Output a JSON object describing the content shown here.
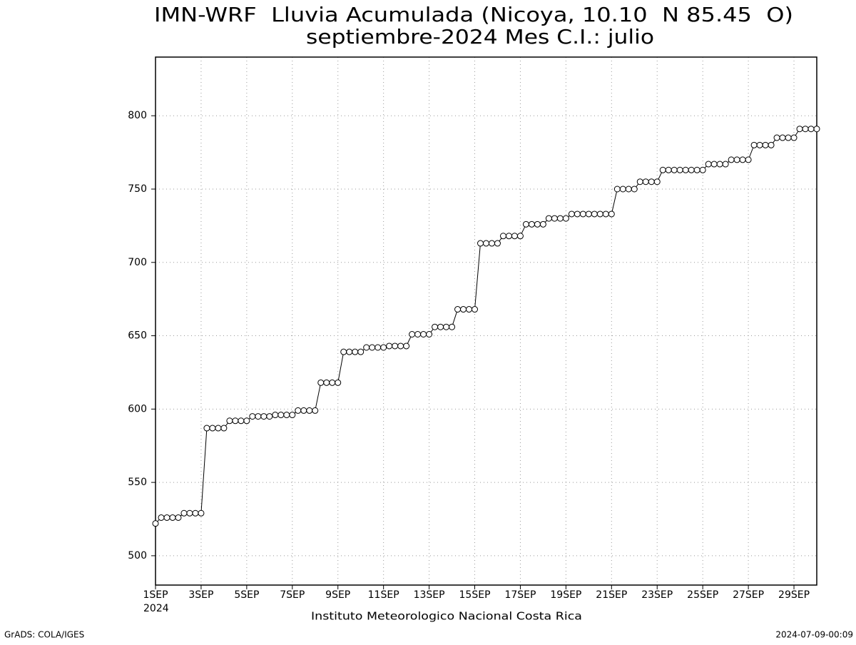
{
  "chart_data": {
    "type": "line",
    "title": "IMN-WRF  Lluvia Acumulada (Nicoya, 10.10  N 85.45  O)",
    "subtitle": "septiembre-2024 Mes C.I.: julio",
    "x_sublabel": "2024",
    "footer": "Instituto Meteorologico Nacional Costa Rica",
    "credit": "GrADS: COLA/IGES",
    "timestamp": "2024-07-09-00:09",
    "categories": [
      "1SEP",
      null,
      null,
      null,
      null,
      null,
      null,
      null,
      "3SEP",
      null,
      null,
      null,
      null,
      null,
      null,
      null,
      "5SEP",
      null,
      null,
      null,
      null,
      null,
      null,
      null,
      "7SEP",
      null,
      null,
      null,
      null,
      null,
      null,
      null,
      "9SEP",
      null,
      null,
      null,
      null,
      null,
      null,
      null,
      "11SEP",
      null,
      null,
      null,
      null,
      null,
      null,
      null,
      "13SEP",
      null,
      null,
      null,
      null,
      null,
      null,
      null,
      "15SEP",
      null,
      null,
      null,
      null,
      null,
      null,
      null,
      "17SEP",
      null,
      null,
      null,
      null,
      null,
      null,
      null,
      "19SEP",
      null,
      null,
      null,
      null,
      null,
      null,
      null,
      "21SEP",
      null,
      null,
      null,
      null,
      null,
      null,
      null,
      "23SEP",
      null,
      null,
      null,
      null,
      null,
      null,
      null,
      "25SEP",
      null,
      null,
      null,
      null,
      null,
      null,
      null,
      "27SEP",
      null,
      null,
      null,
      null,
      null,
      null,
      null,
      "29SEP",
      null,
      null,
      null,
      null
    ],
    "values": [
      522,
      526,
      526,
      526,
      526,
      529,
      529,
      529,
      529,
      587,
      587,
      587,
      587,
      592,
      592,
      592,
      592,
      595,
      595,
      595,
      595,
      596,
      596,
      596,
      596,
      599,
      599,
      599,
      599,
      618,
      618,
      618,
      618,
      639,
      639,
      639,
      639,
      642,
      642,
      642,
      642,
      643,
      643,
      643,
      643,
      651,
      651,
      651,
      651,
      656,
      656,
      656,
      656,
      668,
      668,
      668,
      668,
      713,
      713,
      713,
      713,
      718,
      718,
      718,
      718,
      726,
      726,
      726,
      726,
      730,
      730,
      730,
      730,
      733,
      733,
      733,
      733,
      733,
      733,
      733,
      733,
      750,
      750,
      750,
      750,
      755,
      755,
      755,
      755,
      763,
      763,
      763,
      763,
      763,
      763,
      763,
      763,
      767,
      767,
      767,
      767,
      770,
      770,
      770,
      770,
      780,
      780,
      780,
      780,
      785,
      785,
      785,
      785,
      791,
      791,
      791,
      791
    ],
    "color": "#000000",
    "ylim": [
      480,
      840
    ],
    "yticks": [
      500,
      550,
      600,
      650,
      700,
      750,
      800
    ],
    "grid": true
  }
}
